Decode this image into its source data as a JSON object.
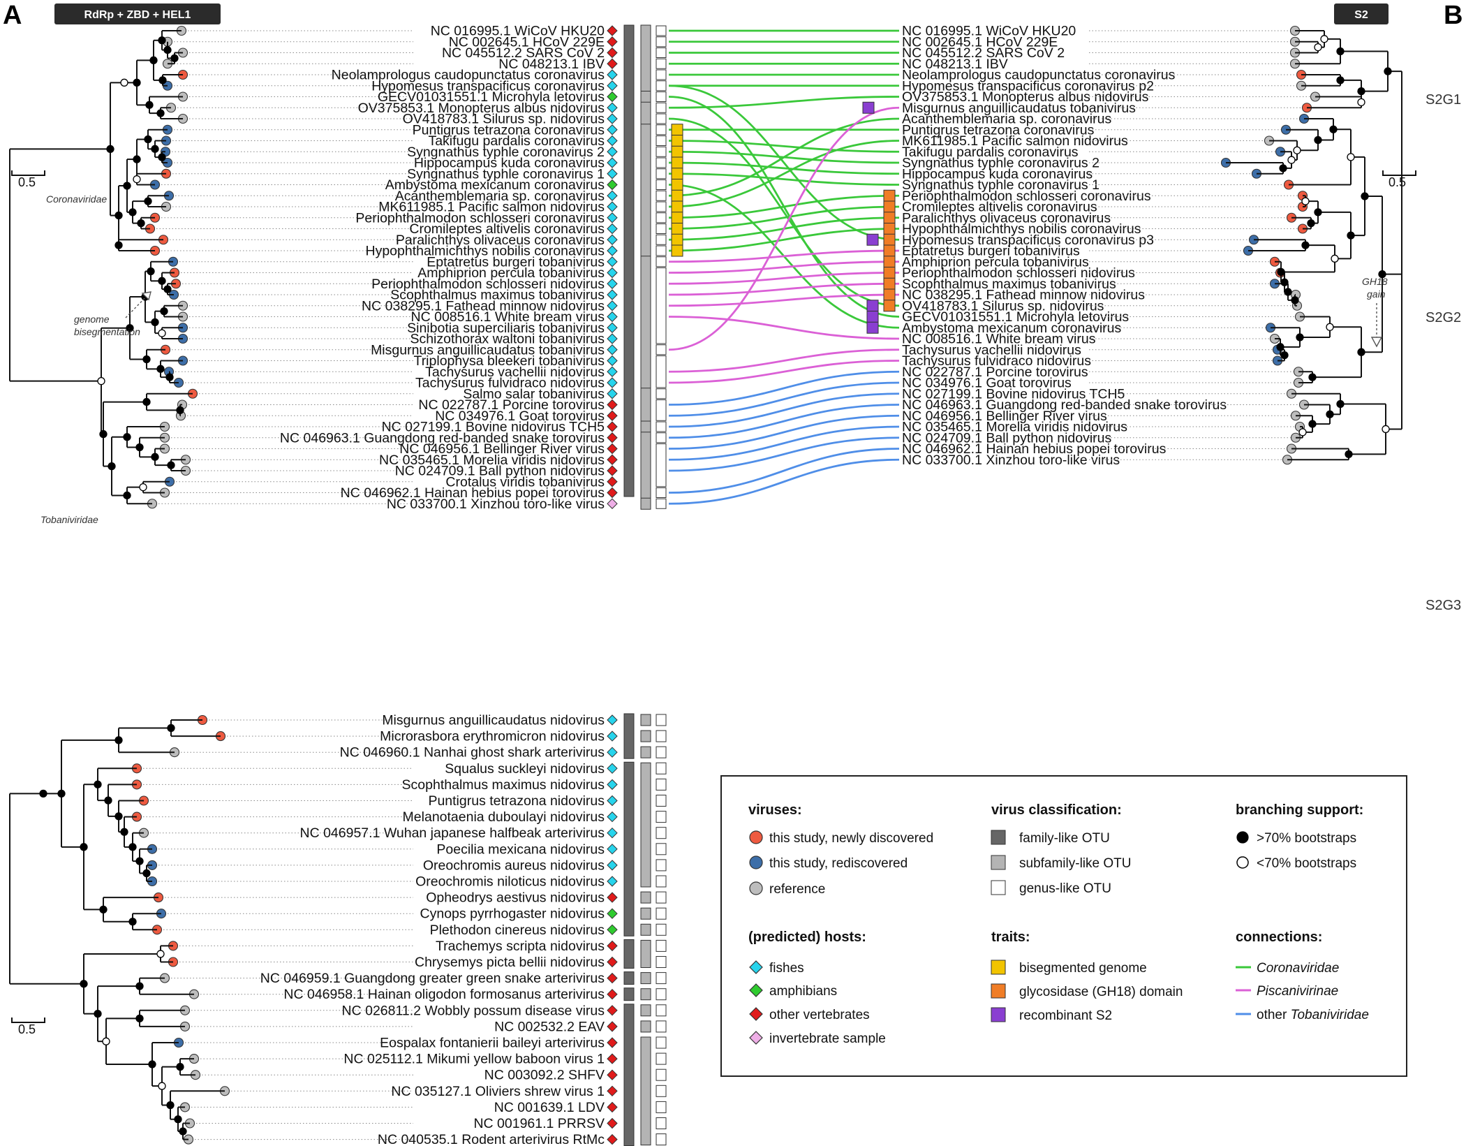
{
  "panels": {
    "a_letter": "A",
    "b_letter": "B",
    "a_badge": "RdRp + ZBD + HEL1",
    "b_badge": "S2"
  },
  "colors": {
    "newly": "#ee5a40",
    "rediscovered": "#3d6ea8",
    "reference": "#bdbdbd",
    "fish": "#27d4ec",
    "amphibian": "#2fcb2f",
    "other_vertebrate": "#e01b1b",
    "invertebrate": "#eeaee6",
    "family_otu": "#666666",
    "subfamily_otu": "#b4b4b4",
    "bisegmented": "#f2c400",
    "gh18": "#f07d26",
    "recombinant": "#8a3fd1",
    "coronaviridae": "#3ac83a",
    "piscanivirinae": "#db60d6",
    "other_tobaniviridae": "#4f8ee8"
  },
  "left_tree": {
    "clade_coronaviridae": "Coronaviridae",
    "clade_tobaniviridae": "Tobaniviridae",
    "annotation_line1": "genome",
    "annotation_line2": "bisegmentation",
    "scale": "0.5",
    "tips": [
      {
        "label": "NC 016995.1 WiCoV HKU20",
        "status": "reference",
        "host": "other_vertebrate",
        "trait": "",
        "conn": "coronaviridae"
      },
      {
        "label": "NC 002645.1 HCoV 229E",
        "status": "reference",
        "host": "other_vertebrate",
        "trait": "",
        "conn": "coronaviridae"
      },
      {
        "label": "NC 045512.2 SARS CoV 2",
        "status": "reference",
        "host": "other_vertebrate",
        "trait": "",
        "conn": "coronaviridae"
      },
      {
        "label": "NC 048213.1 IBV",
        "status": "reference",
        "host": "other_vertebrate",
        "trait": "",
        "conn": "coronaviridae"
      },
      {
        "label": "Neolamprologus caudopunctatus coronavirus",
        "status": "newly",
        "host": "fish",
        "trait": "",
        "conn": "coronaviridae"
      },
      {
        "label": "Hypomesus transpacificus coronavirus",
        "status": "rediscovered",
        "host": "fish",
        "trait": "",
        "conn": "coronaviridae"
      },
      {
        "label": "GECV01031551.1 Microhyla letovirus",
        "status": "reference",
        "host": "amphibian",
        "trait": "",
        "conn": "coronaviridae"
      },
      {
        "label": "OV375853.1 Monopterus albus nidovirus",
        "status": "reference",
        "host": "fish",
        "trait": "",
        "conn": "coronaviridae"
      },
      {
        "label": "OV418783.1 Silurus sp. nidovirus",
        "status": "reference",
        "host": "fish",
        "trait": "",
        "conn": "coronaviridae"
      },
      {
        "label": "Puntigrus tetrazona coronavirus",
        "status": "rediscovered",
        "host": "fish",
        "trait": "bisegmented",
        "conn": "coronaviridae"
      },
      {
        "label": "Takifugu pardalis coronavirus",
        "status": "rediscovered",
        "host": "fish",
        "trait": "bisegmented",
        "conn": "coronaviridae"
      },
      {
        "label": "Syngnathus typhle coronavirus 2",
        "status": "rediscovered",
        "host": "fish",
        "trait": "bisegmented",
        "conn": "coronaviridae"
      },
      {
        "label": "Hippocampus kuda coronavirus",
        "status": "rediscovered",
        "host": "fish",
        "trait": "bisegmented",
        "conn": "coronaviridae"
      },
      {
        "label": "Syngnathus typhle coronavirus 1",
        "status": "newly",
        "host": "fish",
        "trait": "bisegmented",
        "conn": "coronaviridae"
      },
      {
        "label": "Ambystoma mexicanum coronavirus",
        "status": "rediscovered",
        "host": "amphibian",
        "trait": "bisegmented",
        "conn": "coronaviridae"
      },
      {
        "label": "Acanthemblemaria sp. coronavirus",
        "status": "rediscovered",
        "host": "fish",
        "trait": "bisegmented",
        "conn": "coronaviridae"
      },
      {
        "label": "MK611985.1 Pacific salmon nidovirus",
        "status": "reference",
        "host": "fish",
        "trait": "bisegmented",
        "conn": "coronaviridae"
      },
      {
        "label": "Periophthalmodon schlosseri coronavirus",
        "status": "newly",
        "host": "fish",
        "trait": "bisegmented",
        "conn": "coronaviridae"
      },
      {
        "label": "Cromileptes altivelis coronavirus",
        "status": "newly",
        "host": "fish",
        "trait": "bisegmented",
        "conn": "coronaviridae"
      },
      {
        "label": "Paralichthys olivaceus coronavirus",
        "status": "newly",
        "host": "fish",
        "trait": "bisegmented",
        "conn": "coronaviridae"
      },
      {
        "label": "Hypophthalmichthys nobilis coronavirus",
        "status": "newly",
        "host": "fish",
        "trait": "bisegmented",
        "conn": "coronaviridae"
      },
      {
        "label": "Eptatretus burgeri tobanivirus",
        "status": "rediscovered",
        "host": "fish",
        "trait": "",
        "conn": "piscanivirinae"
      },
      {
        "label": "Amphiprion percula tobanivirus",
        "status": "newly",
        "host": "fish",
        "trait": "",
        "conn": "piscanivirinae"
      },
      {
        "label": "Periophthalmodon schlosseri nidovirus",
        "status": "newly",
        "host": "fish",
        "trait": "",
        "conn": "piscanivirinae"
      },
      {
        "label": "Scophthalmus maximus tobanivirus",
        "status": "rediscovered",
        "host": "fish",
        "trait": "",
        "conn": "piscanivirinae"
      },
      {
        "label": "NC 038295.1 Fathead minnow nidovirus",
        "status": "reference",
        "host": "fish",
        "trait": "",
        "conn": "piscanivirinae"
      },
      {
        "label": "NC 008516.1 White bream virus",
        "status": "reference",
        "host": "fish",
        "trait": "",
        "conn": "piscanivirinae"
      },
      {
        "label": "Sinibotia superciliaris tobanivirus",
        "status": "rediscovered",
        "host": "fish",
        "trait": "",
        "conn": ""
      },
      {
        "label": "Schizothorax waltoni tobanivirus",
        "status": "rediscovered",
        "host": "fish",
        "trait": "",
        "conn": ""
      },
      {
        "label": "Misgurnus anguillicaudatus tobanivirus",
        "status": "newly",
        "host": "fish",
        "trait": "",
        "conn": "piscanivirinae"
      },
      {
        "label": "Triplophysa bleekeri tobanivirus",
        "status": "rediscovered",
        "host": "fish",
        "trait": "",
        "conn": ""
      },
      {
        "label": "Tachysurus vachellii nidovirus",
        "status": "rediscovered",
        "host": "fish",
        "trait": "",
        "conn": "piscanivirinae"
      },
      {
        "label": "Tachysurus fulvidraco nidovirus",
        "status": "rediscovered",
        "host": "fish",
        "trait": "",
        "conn": "piscanivirinae"
      },
      {
        "label": "Salmo salar tobanivirus",
        "status": "newly",
        "host": "fish",
        "trait": "",
        "conn": ""
      },
      {
        "label": "NC 022787.1 Porcine torovirus",
        "status": "reference",
        "host": "other_vertebrate",
        "trait": "",
        "conn": "other_tobaniviridae"
      },
      {
        "label": "NC 034976.1 Goat torovirus",
        "status": "reference",
        "host": "other_vertebrate",
        "trait": "",
        "conn": "other_tobaniviridae"
      },
      {
        "label": "NC 027199.1 Bovine nidovirus TCH5",
        "status": "reference",
        "host": "other_vertebrate",
        "trait": "",
        "conn": "other_tobaniviridae"
      },
      {
        "label": "NC 046963.1 Guangdong red-banded snake torovirus",
        "status": "reference",
        "host": "other_vertebrate",
        "trait": "",
        "conn": "other_tobaniviridae"
      },
      {
        "label": "NC 046956.1 Bellinger River virus",
        "status": "reference",
        "host": "other_vertebrate",
        "trait": "",
        "conn": "other_tobaniviridae"
      },
      {
        "label": "NC 035465.1 Morelia viridis nidovirus",
        "status": "reference",
        "host": "other_vertebrate",
        "trait": "",
        "conn": "other_tobaniviridae"
      },
      {
        "label": "NC 024709.1 Ball python nidovirus",
        "status": "reference",
        "host": "other_vertebrate",
        "trait": "",
        "conn": "other_tobaniviridae"
      },
      {
        "label": "Crotalus viridis tobanivirus",
        "status": "rediscovered",
        "host": "other_vertebrate",
        "trait": "",
        "conn": ""
      },
      {
        "label": "NC 046962.1 Hainan hebius popei torovirus",
        "status": "reference",
        "host": "other_vertebrate",
        "trait": "",
        "conn": "other_tobaniviridae"
      },
      {
        "label": "NC 033700.1 Xinzhou toro-like virus",
        "status": "reference",
        "host": "invertebrate",
        "trait": "",
        "conn": "other_tobaniviridae"
      }
    ]
  },
  "right_tree": {
    "scale": "0.5",
    "group_labels": [
      "S2G1",
      "S2G2",
      "S2G3"
    ],
    "annotation_line1": "GH18",
    "annotation_line2": "gain",
    "tips": [
      {
        "label": "NC 016995.1 WiCoV HKU20",
        "status": "reference",
        "trait": ""
      },
      {
        "label": "NC 002645.1 HCoV 229E",
        "status": "reference",
        "trait": ""
      },
      {
        "label": "NC 045512.2 SARS CoV 2",
        "status": "reference",
        "trait": ""
      },
      {
        "label": "NC 048213.1 IBV",
        "status": "reference",
        "trait": ""
      },
      {
        "label": "Neolamprologus caudopunctatus coronavirus",
        "status": "newly",
        "trait": ""
      },
      {
        "label": "Hypomesus transpacificus coronavirus p2",
        "status": "reference",
        "trait": ""
      },
      {
        "label": "OV375853.1 Monopterus albus nidovirus",
        "status": "reference",
        "trait": ""
      },
      {
        "label": "Misgurnus anguillicaudatus tobanivirus",
        "status": "newly",
        "trait": "recombinant"
      },
      {
        "label": "Acanthemblemaria sp. coronavirus",
        "status": "rediscovered",
        "trait": ""
      },
      {
        "label": "Puntigrus tetrazona coronavirus",
        "status": "rediscovered",
        "trait": ""
      },
      {
        "label": "MK611985.1 Pacific salmon nidovirus",
        "status": "reference",
        "trait": ""
      },
      {
        "label": "Takifugu pardalis coronavirus",
        "status": "rediscovered",
        "trait": ""
      },
      {
        "label": "Syngnathus typhle coronavirus 2",
        "status": "rediscovered",
        "trait": ""
      },
      {
        "label": "Hippocampus kuda coronavirus",
        "status": "rediscovered",
        "trait": ""
      },
      {
        "label": "Syngnathus typhle coronavirus 1",
        "status": "newly",
        "trait": ""
      },
      {
        "label": "Periophthalmodon schlosseri coronavirus",
        "status": "newly",
        "trait": "gh18"
      },
      {
        "label": "Cromileptes altivelis coronavirus",
        "status": "newly",
        "trait": "gh18"
      },
      {
        "label": "Paralichthys olivaceus coronavirus",
        "status": "newly",
        "trait": "gh18"
      },
      {
        "label": "Hypophthalmichthys nobilis coronavirus",
        "status": "newly",
        "trait": "gh18"
      },
      {
        "label": "Hypomesus transpacificus coronavirus p3",
        "status": "rediscovered",
        "trait": "recombinant_gh18"
      },
      {
        "label": "Eptatretus burgeri tobanivirus",
        "status": "rediscovered",
        "trait": "gh18"
      },
      {
        "label": "Amphiprion percula tobanivirus",
        "status": "newly",
        "trait": "gh18"
      },
      {
        "label": "Periophthalmodon schlosseri nidovirus",
        "status": "newly",
        "trait": "gh18"
      },
      {
        "label": "Scophthalmus maximus tobanivirus",
        "status": "rediscovered",
        "trait": "gh18"
      },
      {
        "label": "NC 038295.1 Fathead minnow nidovirus",
        "status": "reference",
        "trait": "gh18"
      },
      {
        "label": "OV418783.1 Silurus sp. nidovirus",
        "status": "reference",
        "trait": "recombinant_gh18"
      },
      {
        "label": "GECV01031551.1 Microhyla letovirus",
        "status": "reference",
        "trait": "recombinant"
      },
      {
        "label": "Ambystoma mexicanum coronavirus",
        "status": "rediscovered",
        "trait": "recombinant"
      },
      {
        "label": "NC 008516.1 White bream virus",
        "status": "reference",
        "trait": ""
      },
      {
        "label": "Tachysurus vachellii nidovirus",
        "status": "rediscovered",
        "trait": ""
      },
      {
        "label": "Tachysurus fulvidraco nidovirus",
        "status": "rediscovered",
        "trait": ""
      },
      {
        "label": "NC 022787.1 Porcine torovirus",
        "status": "reference",
        "trait": ""
      },
      {
        "label": "NC 034976.1 Goat torovirus",
        "status": "reference",
        "trait": ""
      },
      {
        "label": "NC 027199.1 Bovine nidovirus TCH5",
        "status": "reference",
        "trait": ""
      },
      {
        "label": "NC 046963.1 Guangdong red-banded snake torovirus",
        "status": "reference",
        "trait": ""
      },
      {
        "label": "NC 046956.1 Bellinger River virus",
        "status": "reference",
        "trait": ""
      },
      {
        "label": "NC 035465.1 Morelia viridis nidovirus",
        "status": "reference",
        "trait": ""
      },
      {
        "label": "NC 024709.1 Ball python nidovirus",
        "status": "reference",
        "trait": ""
      },
      {
        "label": "NC 046962.1 Hainan hebius popei torovirus",
        "status": "reference",
        "trait": ""
      },
      {
        "label": "NC 033700.1 Xinzhou toro-like virus",
        "status": "reference",
        "trait": ""
      }
    ]
  },
  "bottom_tree": {
    "scale": "0.5",
    "tips": [
      {
        "label": "Misgurnus anguillicaudatus nidovirus",
        "status": "newly",
        "host": "fish"
      },
      {
        "label": "Microrasbora erythromicron nidovirus",
        "status": "newly",
        "host": "fish"
      },
      {
        "label": "NC 046960.1 Nanhai ghost shark arterivirus",
        "status": "reference",
        "host": "fish"
      },
      {
        "label": "Squalus suckleyi nidovirus",
        "status": "newly",
        "host": "fish"
      },
      {
        "label": "Scophthalmus maximus nidovirus",
        "status": "newly",
        "host": "fish"
      },
      {
        "label": "Puntigrus tetrazona nidovirus",
        "status": "newly",
        "host": "fish"
      },
      {
        "label": "Melanotaenia duboulayi nidovirus",
        "status": "newly",
        "host": "fish"
      },
      {
        "label": "NC 046957.1 Wuhan japanese halfbeak arterivirus",
        "status": "reference",
        "host": "fish"
      },
      {
        "label": "Poecilia mexicana nidovirus",
        "status": "rediscovered",
        "host": "fish"
      },
      {
        "label": "Oreochromis aureus nidovirus",
        "status": "rediscovered",
        "host": "fish"
      },
      {
        "label": "Oreochromis niloticus nidovirus",
        "status": "rediscovered",
        "host": "fish"
      },
      {
        "label": "Opheodrys aestivus nidovirus",
        "status": "newly",
        "host": "other_vertebrate"
      },
      {
        "label": "Cynops pyrrhogaster nidovirus",
        "status": "rediscovered",
        "host": "amphibian"
      },
      {
        "label": "Plethodon cinereus nidovirus",
        "status": "newly",
        "host": "amphibian"
      },
      {
        "label": "Trachemys scripta nidovirus",
        "status": "newly",
        "host": "other_vertebrate"
      },
      {
        "label": "Chrysemys picta bellii nidovirus",
        "status": "newly",
        "host": "other_vertebrate"
      },
      {
        "label": "NC 046959.1 Guangdong greater green snake arterivirus",
        "status": "reference",
        "host": "other_vertebrate"
      },
      {
        "label": "NC 046958.1 Hainan oligodon formosanus arterivirus",
        "status": "reference",
        "host": "other_vertebrate"
      },
      {
        "label": "NC 026811.2 Wobbly possum disease virus",
        "status": "reference",
        "host": "other_vertebrate"
      },
      {
        "label": "NC 002532.2 EAV",
        "status": "reference",
        "host": "other_vertebrate"
      },
      {
        "label": "Eospalax fontanierii baileyi arterivirus",
        "status": "rediscovered",
        "host": "other_vertebrate"
      },
      {
        "label": "NC 025112.1 Mikumi yellow baboon virus 1",
        "status": "reference",
        "host": "other_vertebrate"
      },
      {
        "label": "NC 003092.2 SHFV",
        "status": "reference",
        "host": "other_vertebrate"
      },
      {
        "label": "NC 035127.1 Oliviers shrew virus 1",
        "status": "reference",
        "host": "other_vertebrate"
      },
      {
        "label": "NC 001639.1 LDV",
        "status": "reference",
        "host": "other_vertebrate"
      },
      {
        "label": "NC 001961.1 PRRSV",
        "status": "reference",
        "host": "other_vertebrate"
      },
      {
        "label": "NC 040535.1 Rodent arterivirus RtMc",
        "status": "reference",
        "host": "other_vertebrate"
      }
    ]
  },
  "legend": {
    "viruses_title": "viruses:",
    "viruses": [
      "this study, newly discovered",
      "this study, rediscovered",
      "reference"
    ],
    "hosts_title": "(predicted) hosts:",
    "hosts": [
      "fishes",
      "amphibians",
      "other vertebrates",
      "invertebrate sample"
    ],
    "classification_title": "virus classification:",
    "classification": [
      "family-like OTU",
      "subfamily-like OTU",
      "genus-like OTU"
    ],
    "traits_title": "traits:",
    "traits": [
      "bisegmented genome",
      "glycosidase (GH18) domain",
      "recombinant S2"
    ],
    "support_title": "branching support:",
    "support": [
      ">70% bootstraps",
      "<70% bootstraps"
    ],
    "connections_title": "connections:",
    "connections": [
      "Coronaviridae",
      "Piscanivirinae",
      "other Tobaniviridae"
    ],
    "connections_other_prefix": "other "
  }
}
